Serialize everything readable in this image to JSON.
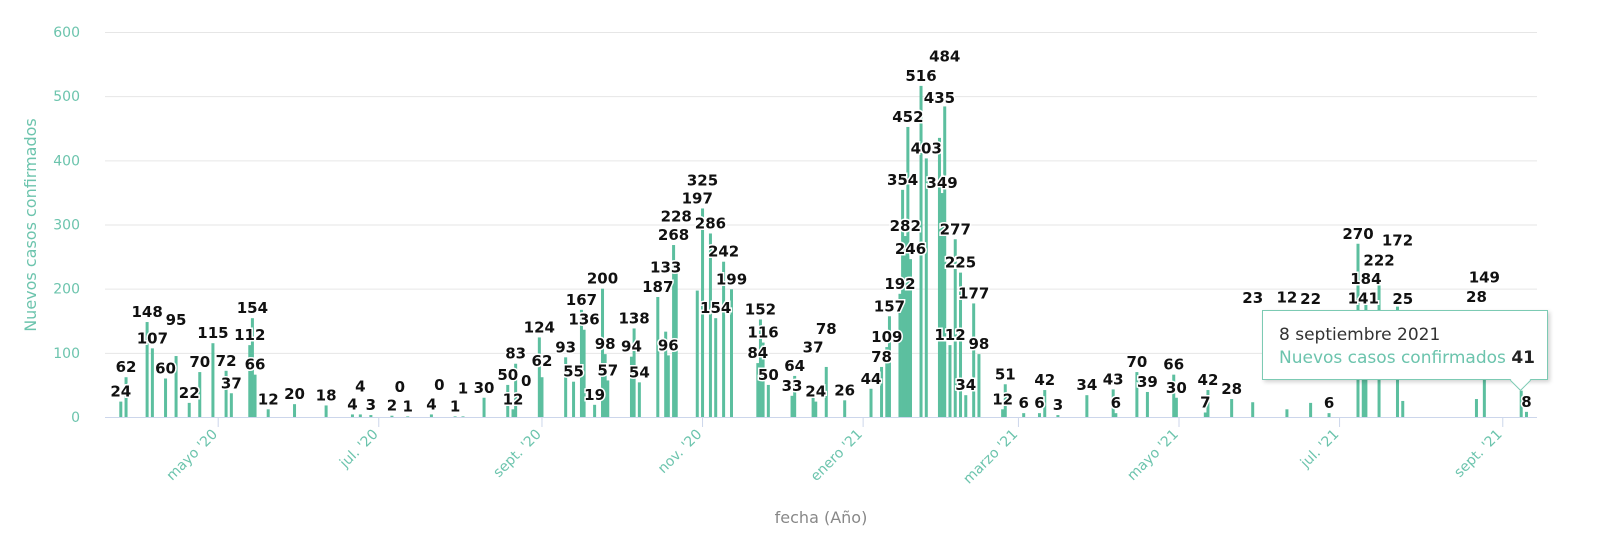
{
  "chart_data": {
    "type": "bar",
    "title": "",
    "xlabel": "fecha (Año)",
    "ylabel": "Nuevos casos confirmados",
    "ylim": [
      0,
      600
    ],
    "yticks": [
      0,
      100,
      200,
      300,
      400,
      500,
      600
    ],
    "xlim": [
      "2020-03-19",
      "2021-09-14"
    ],
    "xticks": [
      {
        "date": "2020-05-01",
        "label": "mayo '20"
      },
      {
        "date": "2020-07-01",
        "label": "jul. '20"
      },
      {
        "date": "2020-09-01",
        "label": "sept. '20"
      },
      {
        "date": "2020-11-01",
        "label": "nov. '20"
      },
      {
        "date": "2021-01-01",
        "label": "enero '21"
      },
      {
        "date": "2021-03-01",
        "label": "marzo '21"
      },
      {
        "date": "2021-05-01",
        "label": "mayo '21"
      },
      {
        "date": "2021-07-01",
        "label": "jul. '21"
      },
      {
        "date": "2021-09-01",
        "label": "sept. '21"
      }
    ],
    "grid": true,
    "color": "#5cbf9f",
    "x": [
      "2020-03-25",
      "2020-03-27",
      "2020-04-04",
      "2020-04-06",
      "2020-04-11",
      "2020-04-15",
      "2020-04-20",
      "2020-04-24",
      "2020-04-29",
      "2020-05-04",
      "2020-05-06",
      "2020-05-13",
      "2020-05-14",
      "2020-05-15",
      "2020-05-20",
      "2020-05-30",
      "2020-06-11",
      "2020-06-21",
      "2020-06-24",
      "2020-06-28",
      "2020-07-06",
      "2020-07-09",
      "2020-07-12",
      "2020-07-21",
      "2020-07-24",
      "2020-07-30",
      "2020-08-02",
      "2020-08-10",
      "2020-08-19",
      "2020-08-21",
      "2020-08-22",
      "2020-08-26",
      "2020-08-31",
      "2020-09-01",
      "2020-09-10",
      "2020-09-13",
      "2020-09-16",
      "2020-09-17",
      "2020-09-21",
      "2020-09-24",
      "2020-09-25",
      "2020-09-26",
      "2020-10-05",
      "2020-10-06",
      "2020-10-08",
      "2020-10-15",
      "2020-10-18",
      "2020-10-19",
      "2020-10-21",
      "2020-10-22",
      "2020-10-30",
      "2020-11-01",
      "2020-11-04",
      "2020-11-06",
      "2020-11-09",
      "2020-11-12",
      "2020-11-22",
      "2020-11-23",
      "2020-11-24",
      "2020-11-26",
      "2020-12-05",
      "2020-12-06",
      "2020-12-13",
      "2020-12-14",
      "2020-12-18",
      "2020-12-25",
      "2021-01-04",
      "2021-01-08",
      "2021-01-10",
      "2021-01-11",
      "2021-01-15",
      "2021-01-16",
      "2021-01-17",
      "2021-01-18",
      "2021-01-19",
      "2021-01-23",
      "2021-01-25",
      "2021-01-30",
      "2021-01-31",
      "2021-02-01",
      "2021-02-03",
      "2021-02-05",
      "2021-02-07",
      "2021-02-09",
      "2021-02-12",
      "2021-02-14",
      "2021-02-23",
      "2021-02-24",
      "2021-03-03",
      "2021-03-09",
      "2021-03-11",
      "2021-03-16",
      "2021-03-27",
      "2021-04-06",
      "2021-04-07",
      "2021-04-15",
      "2021-04-19",
      "2021-04-29",
      "2021-04-30",
      "2021-05-11",
      "2021-05-12",
      "2021-05-21",
      "2021-05-29",
      "2021-06-11",
      "2021-06-20",
      "2021-06-27",
      "2021-07-08",
      "2021-07-10",
      "2021-07-11",
      "2021-07-16",
      "2021-07-23",
      "2021-07-25",
      "2021-08-22",
      "2021-08-25",
      "2021-09-08",
      "2021-09-10"
    ],
    "values": [
      24,
      62,
      148,
      107,
      60,
      95,
      22,
      70,
      115,
      72,
      37,
      112,
      154,
      66,
      12,
      20,
      18,
      4,
      4,
      3,
      2,
      0,
      1,
      4,
      0,
      1,
      1,
      30,
      50,
      12,
      83,
      0,
      124,
      62,
      93,
      55,
      167,
      136,
      19,
      200,
      98,
      57,
      94,
      138,
      54,
      187,
      133,
      96,
      268,
      228,
      197,
      325,
      286,
      154,
      242,
      199,
      84,
      152,
      116,
      50,
      33,
      64,
      37,
      24,
      78,
      26,
      44,
      78,
      109,
      157,
      192,
      354,
      282,
      452,
      246,
      516,
      403,
      435,
      349,
      484,
      112,
      277,
      225,
      34,
      177,
      98,
      12,
      51,
      6,
      6,
      42,
      3,
      34,
      43,
      6,
      70,
      39,
      66,
      30,
      7,
      42,
      28,
      23,
      12,
      22,
      6,
      270,
      141,
      184,
      222,
      172,
      25,
      28,
      149,
      41,
      8
    ],
    "tooltip": {
      "date": "8 septiembre 2021",
      "series": "Nuevos casos confirmados",
      "value": "41"
    }
  }
}
